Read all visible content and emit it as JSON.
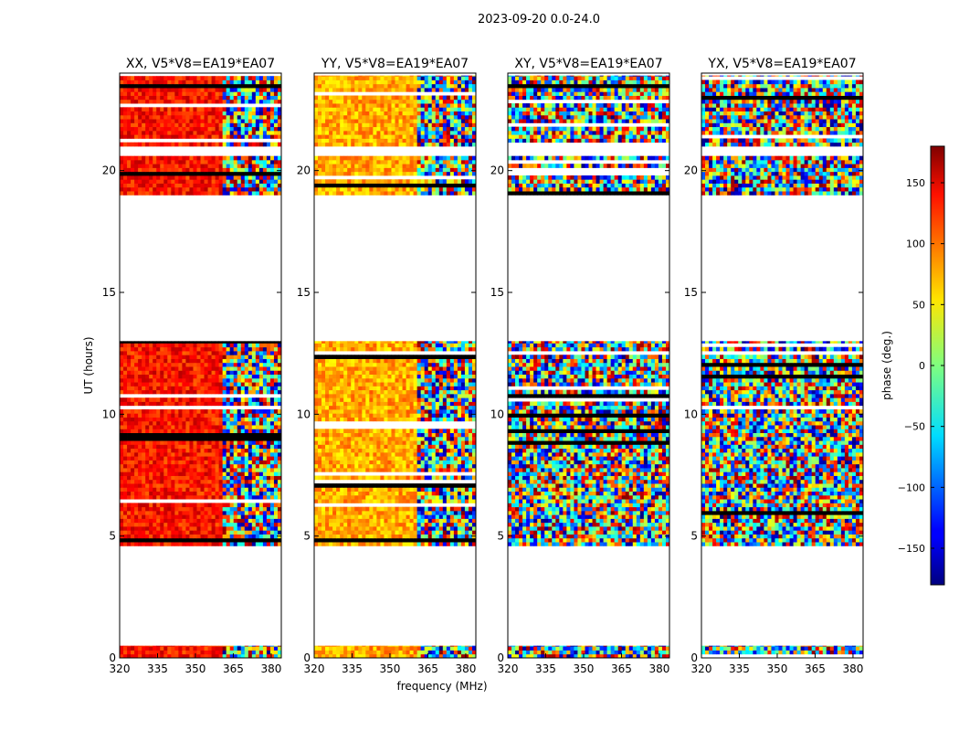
{
  "chart_data": {
    "type": "heatmap",
    "title": "2023-09-20 0.0-24.0",
    "xlabel": "frequency (MHz)",
    "ylabel": "UT (hours)",
    "xlim": [
      320,
      384
    ],
    "ylim": [
      0,
      24
    ],
    "x_ticks": [
      320,
      335,
      350,
      365,
      380
    ],
    "y_ticks": [
      0,
      5,
      10,
      15,
      20
    ],
    "panels": [
      {
        "title": "XX, V5*V8=EA19*EA07",
        "coherent_phase_deg": 130
      },
      {
        "title": "YY, V5*V8=EA19*EA07",
        "coherent_phase_deg": 75
      },
      {
        "title": "XY, V5*V8=EA19*EA07",
        "coherent_phase_deg": null
      },
      {
        "title": "YX, V5*V8=EA19*EA07",
        "coherent_phase_deg": null
      }
    ],
    "data_time_ranges_hours": [
      [
        0.0,
        0.5
      ],
      [
        4.6,
        13.0
      ],
      [
        19.0,
        20.6
      ],
      [
        21.0,
        23.9
      ]
    ],
    "rfi_free_freq_mhz": [
      320,
      361
    ],
    "colorbar": {
      "label": "phase (deg.)",
      "range": [
        -180,
        180
      ],
      "ticks": [
        -150,
        -100,
        -50,
        0,
        50,
        100,
        150
      ],
      "colormap": "jet"
    }
  }
}
